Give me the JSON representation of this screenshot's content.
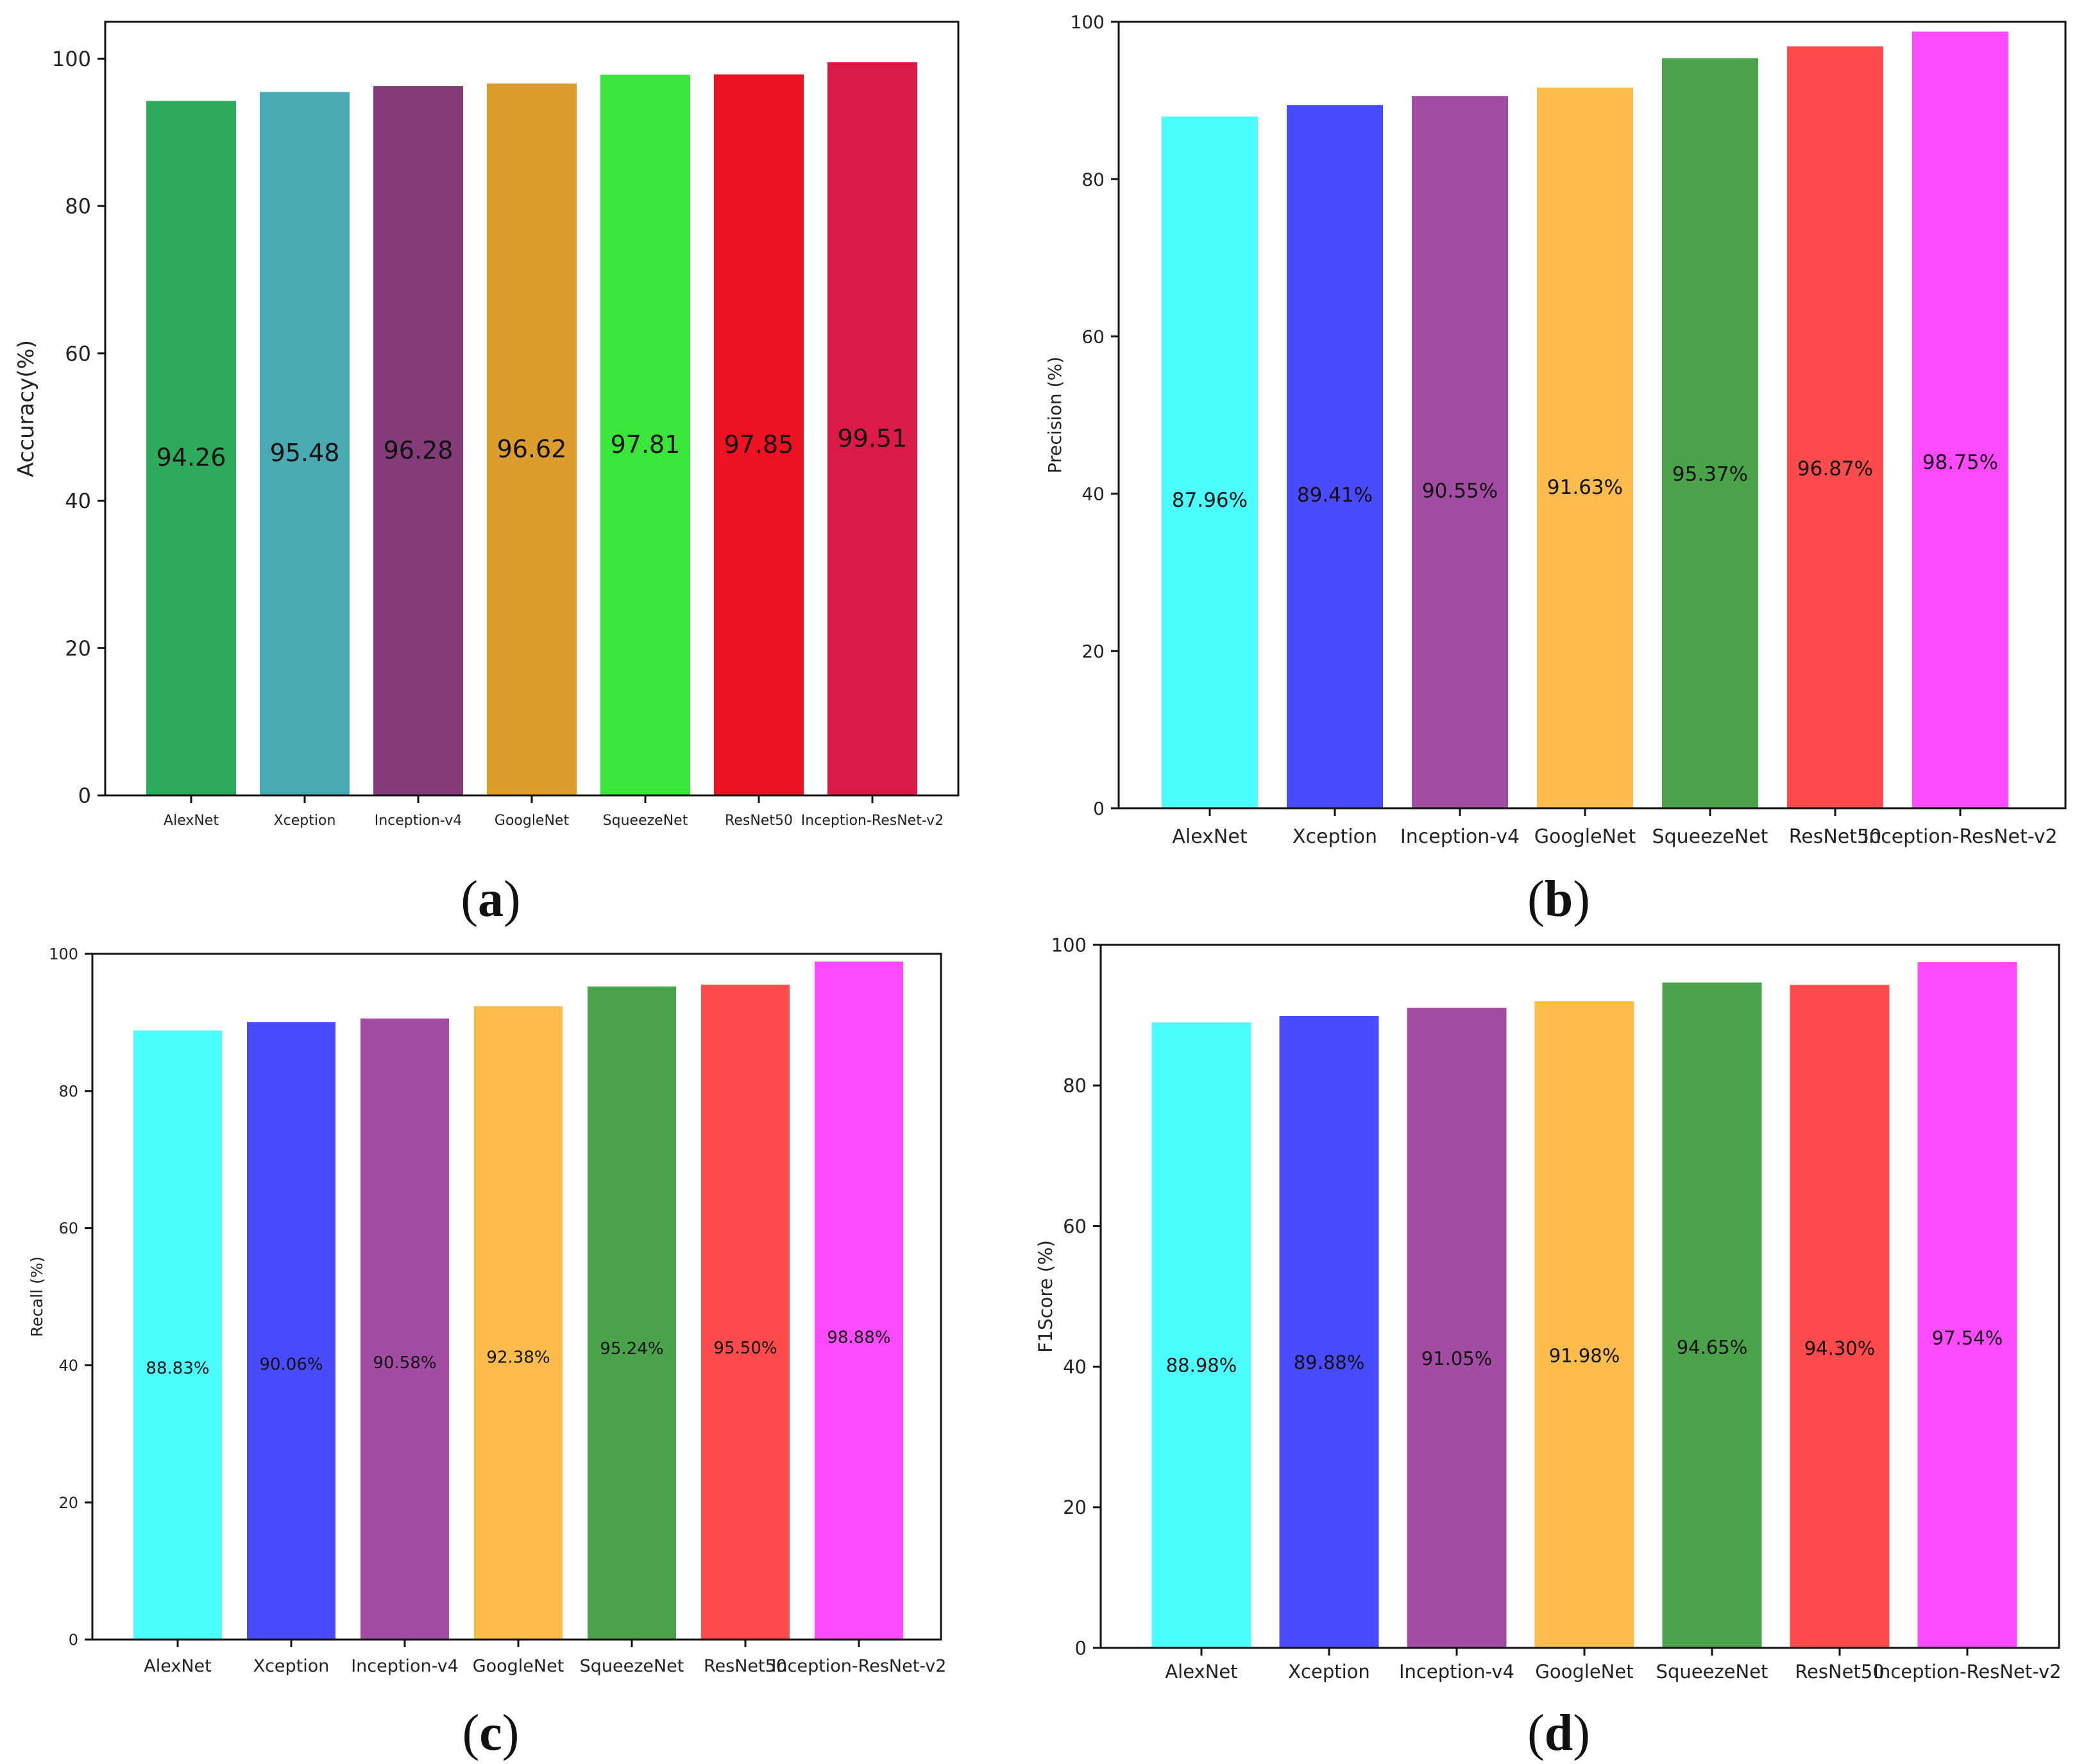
{
  "figure": {
    "panels": [
      {
        "caption": "a"
      },
      {
        "caption": "b"
      },
      {
        "caption": "c"
      },
      {
        "caption": "d"
      }
    ]
  },
  "chart_data": [
    {
      "type": "bar",
      "panel": "a",
      "title": "",
      "xlabel": "",
      "ylabel": "Accuracy(%)",
      "categories": [
        "AlexNet",
        "Xception",
        "Inception-v4",
        "GoogleNet",
        "SqueezeNet",
        "ResNet50",
        "Inception-ResNet-v2"
      ],
      "values": [
        94.26,
        95.48,
        96.28,
        96.62,
        97.81,
        97.85,
        99.51
      ],
      "value_labels": [
        "94.26",
        "95.48",
        "96.28",
        "96.62",
        "97.81",
        "97.85",
        "99.51"
      ],
      "colors": [
        "#2eaa5c",
        "#48abb3",
        "#843b7a",
        "#dd9d2c",
        "#3be63a",
        "#ec1222",
        "#dc1a48"
      ],
      "ylim": [
        0,
        105
      ],
      "yticks": [
        0,
        20,
        40,
        60,
        80,
        100
      ],
      "grid": false
    },
    {
      "type": "bar",
      "panel": "b",
      "title": "",
      "xlabel": "",
      "ylabel": "Precision (%)",
      "categories": [
        "AlexNet",
        "Xception",
        "Inception-v4",
        "GoogleNet",
        "SqueezeNet",
        "ResNet50",
        "Inception-ResNet-v2"
      ],
      "values": [
        87.96,
        89.41,
        90.55,
        91.63,
        95.37,
        96.87,
        98.75
      ],
      "value_labels": [
        "87.96%",
        "89.41%",
        "90.55%",
        "91.63%",
        "95.37%",
        "96.87%",
        "98.75%"
      ],
      "colors": [
        "#4cfffe",
        "#4a4aff",
        "#a34ca3",
        "#fdbc4c",
        "#4aa34a",
        "#ff4b4b",
        "#ff4bff"
      ],
      "ylim": [
        0,
        100
      ],
      "yticks": [
        0,
        20,
        40,
        60,
        80,
        100
      ],
      "grid": false
    },
    {
      "type": "bar",
      "panel": "c",
      "title": "",
      "xlabel": "",
      "ylabel": "Recall (%)",
      "categories": [
        "AlexNet",
        "Xception",
        "Inception-v4",
        "GoogleNet",
        "SqueezeNet",
        "ResNet50",
        "Inception-ResNet-v2"
      ],
      "values": [
        88.83,
        90.06,
        90.58,
        92.38,
        95.24,
        95.5,
        98.88
      ],
      "value_labels": [
        "88.83%",
        "90.06%",
        "90.58%",
        "92.38%",
        "95.24%",
        "95.50%",
        "98.88%"
      ],
      "colors": [
        "#4cfffe",
        "#4a4aff",
        "#a34ca3",
        "#fdbc4c",
        "#4aa34a",
        "#ff4b4b",
        "#ff4bff"
      ],
      "ylim": [
        0,
        100
      ],
      "yticks": [
        0,
        20,
        40,
        60,
        80,
        100
      ],
      "grid": false
    },
    {
      "type": "bar",
      "panel": "d",
      "title": "",
      "xlabel": "",
      "ylabel": "F1Score (%)",
      "categories": [
        "AlexNet",
        "Xception",
        "Inception-v4",
        "GoogleNet",
        "SqueezeNet",
        "ResNet50",
        "Inception-ResNet-v2"
      ],
      "values": [
        88.98,
        89.88,
        91.05,
        91.98,
        94.65,
        94.3,
        97.54
      ],
      "value_labels": [
        "88.98%",
        "89.88%",
        "91.05%",
        "91.98%",
        "94.65%",
        "94.30%",
        "97.54%"
      ],
      "colors": [
        "#4cfffe",
        "#4a4aff",
        "#a34ca3",
        "#fdbc4c",
        "#4aa34a",
        "#ff4b4b",
        "#ff4bff"
      ],
      "ylim": [
        0,
        100
      ],
      "yticks": [
        0,
        20,
        40,
        60,
        80,
        100
      ],
      "grid": false
    }
  ]
}
